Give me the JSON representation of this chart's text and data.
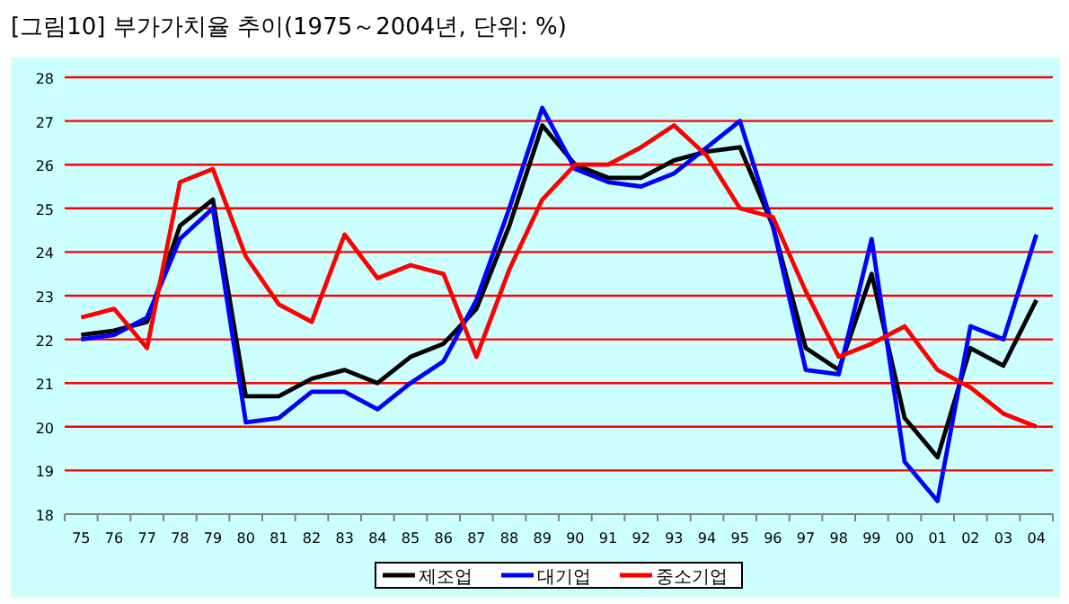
{
  "chart_data": {
    "type": "line",
    "title": "[그림10] 부가가치율 추이(1975～2004년, 단위: %)",
    "categories": [
      "75",
      "76",
      "77",
      "78",
      "79",
      "80",
      "81",
      "82",
      "83",
      "84",
      "85",
      "86",
      "87",
      "88",
      "89",
      "90",
      "91",
      "92",
      "93",
      "94",
      "95",
      "96",
      "97",
      "98",
      "99",
      "00",
      "01",
      "02",
      "03",
      "04"
    ],
    "series": [
      {
        "name": "제조업",
        "color": "#000000",
        "values": [
          22.1,
          22.2,
          22.4,
          24.6,
          25.2,
          20.7,
          20.7,
          21.1,
          21.3,
          21.0,
          21.6,
          21.9,
          22.7,
          24.6,
          26.9,
          26.0,
          25.7,
          25.7,
          26.1,
          26.3,
          26.4,
          24.6,
          21.8,
          21.3,
          23.5,
          20.2,
          19.3,
          21.8,
          21.4,
          22.9
        ]
      },
      {
        "name": "대기업",
        "color": "#0000ff",
        "values": [
          22.0,
          22.1,
          22.5,
          24.3,
          25.0,
          20.1,
          20.2,
          20.8,
          20.8,
          20.4,
          21.0,
          21.5,
          22.9,
          25.0,
          27.3,
          25.9,
          25.6,
          25.5,
          25.8,
          26.4,
          27.0,
          24.6,
          21.3,
          21.2,
          24.3,
          19.2,
          18.3,
          22.3,
          22.0,
          24.4
        ]
      },
      {
        "name": "중소기업",
        "color": "#ff0000",
        "values": [
          22.5,
          22.7,
          21.8,
          25.6,
          25.9,
          23.9,
          22.8,
          22.4,
          24.4,
          23.4,
          23.7,
          23.5,
          21.6,
          23.6,
          25.2,
          26.0,
          26.0,
          26.4,
          26.9,
          26.2,
          25.0,
          24.8,
          23.1,
          21.6,
          21.9,
          22.3,
          21.3,
          20.9,
          20.3,
          20.0
        ]
      }
    ],
    "ylim": [
      18,
      28
    ],
    "yticks": [
      18,
      19,
      20,
      21,
      22,
      23,
      24,
      25,
      26,
      27,
      28
    ],
    "grid": "y",
    "legend": "bottom",
    "marker": "none",
    "line_style": "solid"
  }
}
